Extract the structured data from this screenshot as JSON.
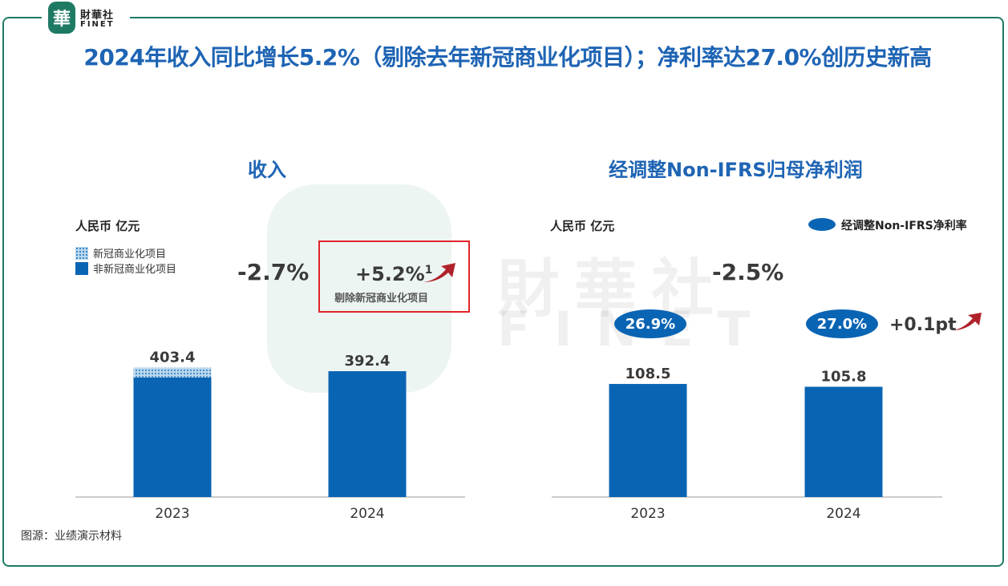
{
  "header": {
    "logo_seal": "華",
    "logo_cn": "財華社",
    "logo_en": "FINET",
    "title": "2024年收入同比增长5.2%（剔除去年新冠商业化项目）；净利率达27.0%创历史新高"
  },
  "watermark": {
    "cn": "財華社",
    "en": "FINET"
  },
  "left_panel": {
    "title": "收入",
    "unit": "人民币 亿元",
    "legend": [
      {
        "label": "新冠商业化项目",
        "color": "#bcd8ee"
      },
      {
        "label": "非新冠商业化项目",
        "color": "#0a64b4"
      }
    ],
    "change_label": "-2.7%",
    "highlight": {
      "value": "+5.2%",
      "footnote": "1",
      "sub": "剔除新冠商业化项目"
    }
  },
  "right_panel": {
    "title": "经调整Non-IFRS归母净利润",
    "unit": "人民币 亿元",
    "legend_label": "经调整Non-IFRS净利率",
    "change_label": "-2.5%",
    "margins": [
      "26.9%",
      "27.0%"
    ],
    "margin_change": "+0.1pt"
  },
  "source": "图源：业绩演示材料",
  "colors": {
    "bar": "#0a64b4",
    "title": "#1e64b4",
    "arrow": "#b0222a",
    "frame": "#1f7a64"
  },
  "chart_data": [
    {
      "type": "bar",
      "stacked": true,
      "title": "收入",
      "ylabel": "人民币 亿元",
      "categories": [
        "2023",
        "2024"
      ],
      "totals": [
        403.4,
        392.4
      ],
      "total_labels": [
        "403.4",
        "392.4"
      ],
      "series": [
        {
          "name": "非新冠商业化项目",
          "values": [
            373,
            392.4
          ]
        },
        {
          "name": "新冠商业化项目",
          "values": [
            30.4,
            0
          ]
        }
      ],
      "ylim": [
        0,
        500
      ]
    },
    {
      "type": "bar",
      "title": "经调整Non-IFRS归母净利润",
      "ylabel": "人民币 亿元",
      "categories": [
        "2023",
        "2024"
      ],
      "values": [
        108.5,
        105.8
      ],
      "value_labels": [
        "108.5",
        "105.8"
      ],
      "ylim": [
        0,
        215
      ]
    }
  ]
}
